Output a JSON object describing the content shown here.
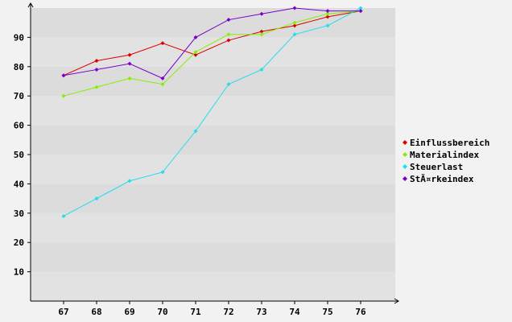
{
  "chart_data": {
    "type": "line",
    "title": "",
    "xlabel": "",
    "ylabel": "",
    "x": [
      "67",
      "68",
      "69",
      "70",
      "71",
      "72",
      "73",
      "74",
      "75",
      "76"
    ],
    "yticks": [
      10,
      20,
      30,
      40,
      50,
      60,
      70,
      80,
      90
    ],
    "ylim": [
      0,
      100
    ],
    "grid": "horizontal-bands",
    "legend_position": "right",
    "series": [
      {
        "name": "Einflussbereich",
        "color": "#dd0000",
        "values": [
          77,
          82,
          84,
          88,
          84,
          89,
          92,
          94,
          97,
          99
        ]
      },
      {
        "name": "Materialindex",
        "color": "#88ee00",
        "values": [
          70,
          73,
          76,
          74,
          85,
          91,
          91,
          95,
          98,
          99
        ]
      },
      {
        "name": "Steuerlast",
        "color": "#22ddee",
        "values": [
          29,
          35,
          41,
          44,
          58,
          74,
          79,
          91,
          94,
          100
        ]
      },
      {
        "name": "StÃ¤rkeindex",
        "color": "#7700cc",
        "values": [
          77,
          79,
          81,
          76,
          90,
          96,
          98,
          100,
          99,
          99
        ]
      }
    ]
  }
}
